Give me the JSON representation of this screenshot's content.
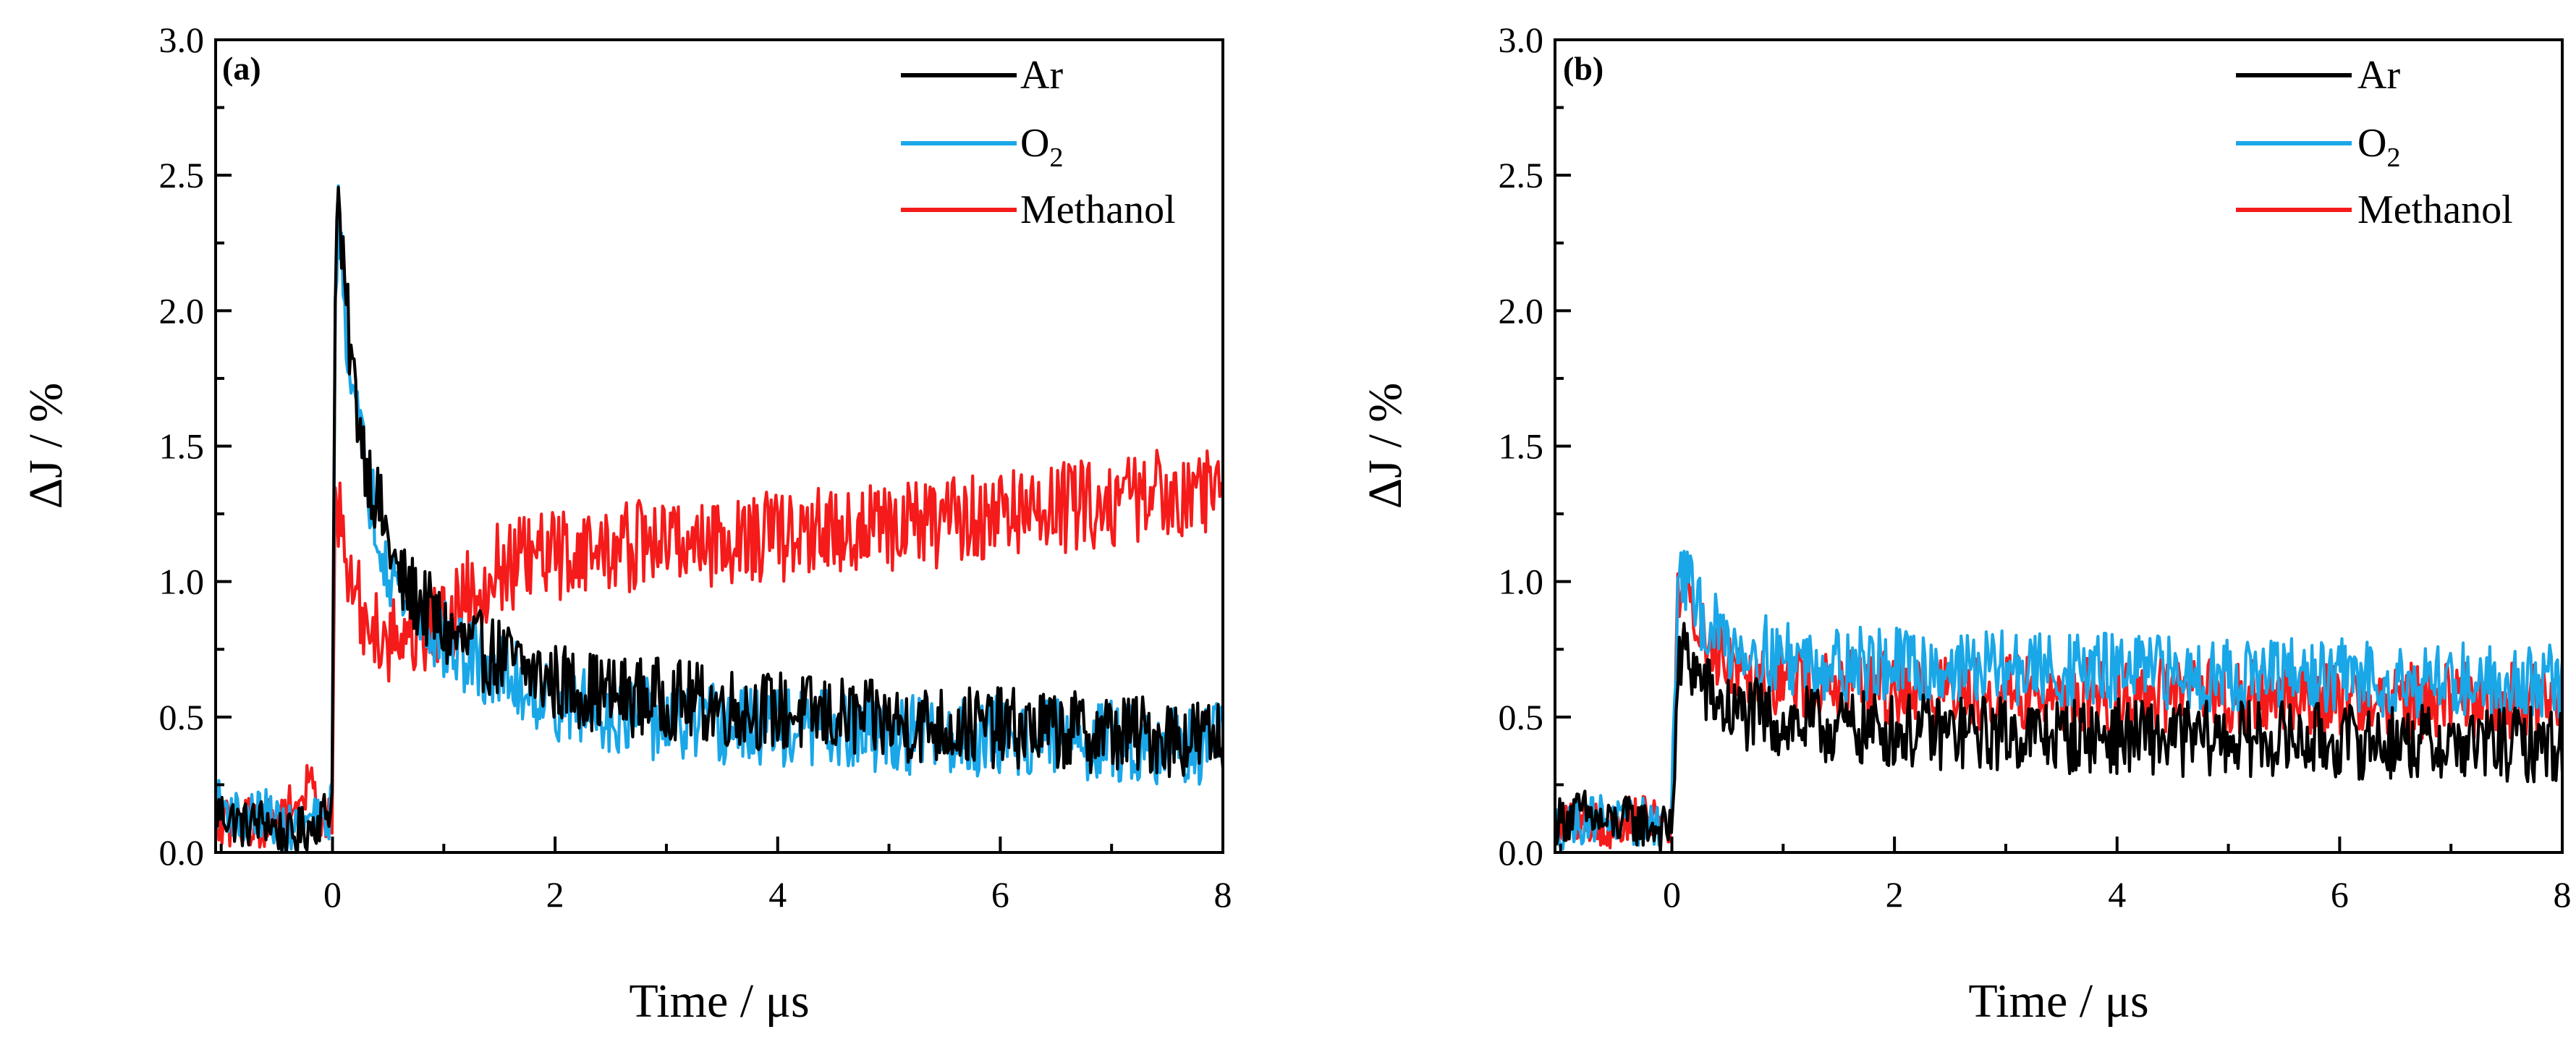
{
  "chart_data": [
    {
      "type": "line",
      "panel_label": "(a)",
      "xlabel": "Time / μs",
      "ylabel": "ΔJ / %",
      "xlim": [
        -1.05,
        8
      ],
      "ylim": [
        0,
        3.0
      ],
      "x_ticks": [
        0,
        2,
        4,
        6,
        8
      ],
      "x_tick_labels": [
        "0",
        "2",
        "4",
        "6",
        "8"
      ],
      "y_ticks": [
        0,
        0.5,
        1.0,
        1.5,
        2.0,
        2.5,
        3.0
      ],
      "y_tick_labels": [
        "0.0",
        "0.5",
        "1.0",
        "1.5",
        "2.0",
        "2.5",
        "3.0"
      ],
      "legend_position": "top-right",
      "legend": [
        {
          "label": "Ar",
          "sub": ""
        },
        {
          "label": "O",
          "sub": "2"
        },
        {
          "label": "Methanol",
          "sub": ""
        }
      ],
      "series": [
        {
          "name": "Ar",
          "color": "#000000",
          "x": [
            -1.0,
            -0.8,
            -0.6,
            -0.4,
            -0.2,
            -0.05,
            0.0,
            0.02,
            0.05,
            0.1,
            0.2,
            0.3,
            0.4,
            0.5,
            0.6,
            0.8,
            1.0,
            1.2,
            1.5,
            1.8,
            2.0,
            2.5,
            3.0,
            3.5,
            4.0,
            4.5,
            5.0,
            5.5,
            6.0,
            6.5,
            7.0,
            7.5,
            8.0
          ],
          "y": [
            0.15,
            0.1,
            0.12,
            0.05,
            0.1,
            0.15,
            0.2,
            2.1,
            2.42,
            2.1,
            1.7,
            1.45,
            1.3,
            1.15,
            1.0,
            0.92,
            0.82,
            0.76,
            0.72,
            0.66,
            0.63,
            0.58,
            0.57,
            0.54,
            0.52,
            0.5,
            0.48,
            0.47,
            0.46,
            0.45,
            0.44,
            0.43,
            0.42
          ]
        },
        {
          "name": "O2",
          "color": "#1aa7e8",
          "x": [
            -1.0,
            -0.8,
            -0.6,
            -0.4,
            -0.2,
            -0.05,
            0.0,
            0.02,
            0.05,
            0.1,
            0.2,
            0.3,
            0.4,
            0.5,
            0.6,
            0.8,
            1.0,
            1.2,
            1.5,
            1.8,
            2.0,
            2.5,
            3.0,
            3.5,
            4.0,
            4.5,
            5.0,
            5.5,
            6.0,
            6.5,
            7.0,
            7.5,
            8.0
          ],
          "y": [
            0.18,
            0.12,
            0.15,
            0.08,
            0.12,
            0.1,
            0.2,
            2.0,
            2.35,
            2.05,
            1.65,
            1.4,
            1.22,
            1.08,
            0.98,
            0.86,
            0.78,
            0.72,
            0.66,
            0.6,
            0.56,
            0.52,
            0.48,
            0.47,
            0.46,
            0.45,
            0.44,
            0.43,
            0.43,
            0.42,
            0.41,
            0.4,
            0.4
          ]
        },
        {
          "name": "Methanol",
          "color": "#f51b1b",
          "x": [
            -1.0,
            -0.8,
            -0.6,
            -0.4,
            -0.2,
            -0.05,
            0.0,
            0.02,
            0.05,
            0.1,
            0.2,
            0.3,
            0.5,
            0.8,
            1.0,
            1.2,
            1.5,
            1.8,
            2.0,
            2.5,
            3.0,
            3.5,
            4.0,
            4.5,
            5.0,
            5.5,
            6.0,
            6.5,
            7.0,
            7.5,
            8.0
          ],
          "y": [
            0.1,
            0.12,
            0.1,
            0.15,
            0.25,
            0.1,
            0.15,
            1.2,
            1.25,
            1.1,
            0.95,
            0.85,
            0.8,
            0.82,
            0.85,
            0.95,
            1.05,
            1.08,
            1.1,
            1.12,
            1.15,
            1.15,
            1.17,
            1.18,
            1.2,
            1.22,
            1.25,
            1.27,
            1.3,
            1.33,
            1.35
          ]
        }
      ]
    },
    {
      "type": "line",
      "panel_label": "(b)",
      "xlabel": "Time / μs",
      "ylabel": "ΔJ / %",
      "xlim": [
        -1.05,
        8
      ],
      "ylim": [
        0,
        3.0
      ],
      "x_ticks": [
        0,
        2,
        4,
        6,
        8
      ],
      "x_tick_labels": [
        "0",
        "2",
        "4",
        "6",
        "8"
      ],
      "y_ticks": [
        0,
        0.5,
        1.0,
        1.5,
        2.0,
        2.5,
        3.0
      ],
      "y_tick_labels": [
        "0.0",
        "0.5",
        "1.0",
        "1.5",
        "2.0",
        "2.5",
        "3.0"
      ],
      "legend_position": "top-right",
      "legend": [
        {
          "label": "Ar",
          "sub": ""
        },
        {
          "label": "O",
          "sub": "2"
        },
        {
          "label": "Methanol",
          "sub": ""
        }
      ],
      "series": [
        {
          "name": "Ar",
          "color": "#000000",
          "x": [
            -1.0,
            -0.8,
            -0.6,
            -0.4,
            -0.2,
            -0.05,
            0.0,
            0.05,
            0.1,
            0.2,
            0.3,
            0.5,
            0.8,
            1.0,
            1.5,
            2.0,
            2.5,
            3.0,
            3.5,
            4.0,
            4.5,
            5.0,
            5.5,
            6.0,
            6.5,
            7.0,
            7.5,
            8.0
          ],
          "y": [
            0.12,
            0.15,
            0.1,
            0.12,
            0.1,
            0.08,
            0.1,
            0.62,
            0.75,
            0.68,
            0.6,
            0.52,
            0.5,
            0.48,
            0.46,
            0.45,
            0.44,
            0.44,
            0.43,
            0.43,
            0.42,
            0.42,
            0.42,
            0.41,
            0.41,
            0.4,
            0.4,
            0.4
          ]
        },
        {
          "name": "O2",
          "color": "#1aa7e8",
          "x": [
            -1.0,
            -0.8,
            -0.6,
            -0.4,
            -0.2,
            -0.05,
            0.0,
            0.05,
            0.1,
            0.2,
            0.3,
            0.5,
            0.8,
            1.0,
            1.5,
            2.0,
            2.5,
            3.0,
            3.5,
            4.0,
            4.5,
            5.0,
            5.5,
            6.0,
            6.5,
            7.0,
            7.5,
            8.0
          ],
          "y": [
            0.1,
            0.12,
            0.14,
            0.1,
            0.12,
            0.1,
            0.12,
            0.95,
            1.05,
            0.92,
            0.85,
            0.78,
            0.74,
            0.72,
            0.7,
            0.69,
            0.68,
            0.68,
            0.67,
            0.67,
            0.66,
            0.66,
            0.65,
            0.65,
            0.64,
            0.64,
            0.63,
            0.63
          ]
        },
        {
          "name": "Methanol",
          "color": "#f51b1b",
          "x": [
            -1.0,
            -0.8,
            -0.6,
            -0.4,
            -0.2,
            -0.05,
            0.0,
            0.05,
            0.1,
            0.2,
            0.3,
            0.5,
            0.8,
            1.0,
            1.5,
            2.0,
            2.5,
            3.0,
            3.5,
            4.0,
            4.5,
            5.0,
            5.5,
            6.0,
            6.5,
            7.0,
            7.5,
            8.0
          ],
          "y": [
            0.1,
            0.14,
            0.1,
            0.12,
            0.14,
            0.1,
            0.12,
            0.9,
            0.98,
            0.88,
            0.8,
            0.72,
            0.66,
            0.64,
            0.61,
            0.6,
            0.59,
            0.59,
            0.58,
            0.58,
            0.58,
            0.57,
            0.57,
            0.57,
            0.56,
            0.56,
            0.56,
            0.55
          ]
        }
      ]
    }
  ]
}
